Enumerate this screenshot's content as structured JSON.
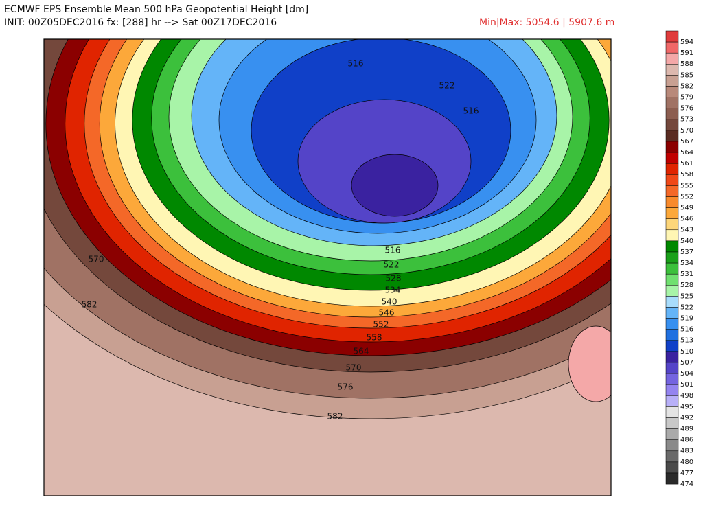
{
  "header": {
    "title": "ECMWF EPS Ensemble Mean 500 hPa Geopotential Height [dm]",
    "init": "INIT: 00Z05DEC2016 fx: [288] hr --> Sat 00Z17DEC2016",
    "minmax": "Min|Max: 5054.6 | 5907.6 m"
  },
  "colorbar": {
    "levels": [
      594,
      591,
      588,
      585,
      582,
      579,
      576,
      573,
      570,
      567,
      564,
      561,
      558,
      555,
      552,
      549,
      546,
      543,
      540,
      537,
      534,
      531,
      528,
      525,
      522,
      519,
      516,
      513,
      510,
      507,
      504,
      501,
      498,
      495,
      492,
      489,
      486,
      483,
      480,
      477,
      474
    ],
    "colors": [
      "#e03c3c",
      "#f06868",
      "#f4a8a8",
      "#dcb8ae",
      "#c8a092",
      "#b8897a",
      "#a07264",
      "#8c5e50",
      "#74483c",
      "#5a2c22",
      "#8b0000",
      "#c00000",
      "#e02400",
      "#f04818",
      "#f46828",
      "#f88a2c",
      "#fca83a",
      "#fdd67a",
      "#fff6b4",
      "#008800",
      "#1aa01a",
      "#3cc03c",
      "#70e070",
      "#a8f4a8",
      "#a8dcfc",
      "#64b4f8",
      "#3890f0",
      "#2070e0",
      "#1040c8",
      "#3a22a0",
      "#5444c8",
      "#7464e0",
      "#9484f0",
      "#b8b0f8",
      "#e4e4e4",
      "#c8c8c8",
      "#aaaaaa",
      "#8a8a8a",
      "#6a6a6a",
      "#4a4a4a",
      "#2a2a2a"
    ]
  },
  "contour_labels": [
    "570",
    "582",
    "516",
    "522",
    "516",
    "516",
    "522",
    "528",
    "534",
    "540",
    "546",
    "552",
    "558",
    "564",
    "570",
    "576",
    "582"
  ]
}
